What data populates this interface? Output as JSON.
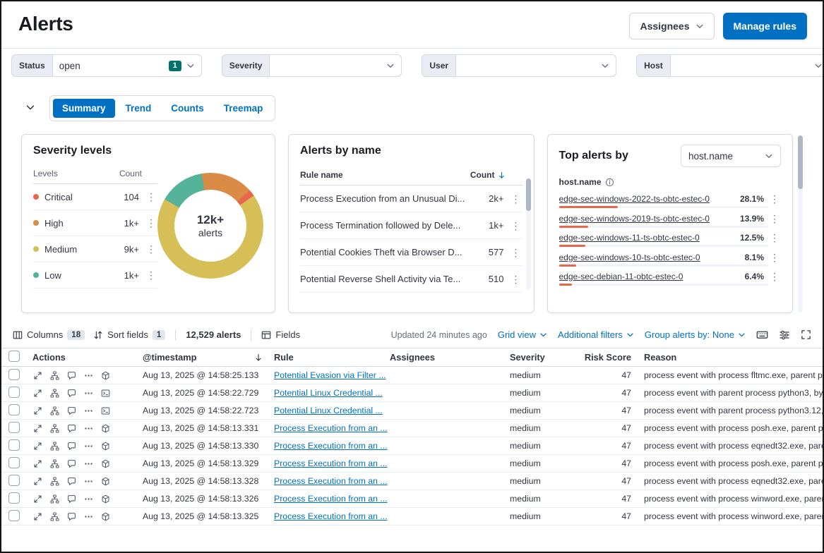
{
  "icons": {
    "more_vertical": "⋮",
    "more_horizontal": "⋯"
  },
  "header": {
    "title": "Alerts",
    "assignees_button": "Assignees",
    "manage_rules_button": "Manage rules"
  },
  "filter_bar": {
    "filters": [
      {
        "label": "Status",
        "value": "open",
        "badge": "1",
        "value_width": 212
      },
      {
        "label": "Severity",
        "value": "",
        "badge": "",
        "value_width": 188
      },
      {
        "label": "User",
        "value": "",
        "badge": "",
        "value_width": 228
      },
      {
        "label": "Host",
        "value": "",
        "badge": "",
        "value_width": 226
      }
    ]
  },
  "view_controls": {
    "tabs": [
      {
        "label": "Summary",
        "active": true
      },
      {
        "label": "Trend",
        "active": false
      },
      {
        "label": "Counts",
        "active": false
      },
      {
        "label": "Treemap",
        "active": false
      }
    ]
  },
  "severity_panel": {
    "title": "Severity levels",
    "columns": {
      "levels": "Levels",
      "count": "Count"
    },
    "rows": [
      {
        "level": "Critical",
        "count": "104",
        "color": "#e7664c"
      },
      {
        "level": "High",
        "count": "1k+",
        "color": "#da8b45"
      },
      {
        "level": "Medium",
        "count": "9k+",
        "color": "#d6bf57"
      },
      {
        "level": "Low",
        "count": "1k+",
        "color": "#54b399"
      }
    ],
    "donut": {
      "center_value": "12k+",
      "center_label": "alerts",
      "start_deg": 300,
      "segments": [
        {
          "label": "Low",
          "color": "#54b399",
          "share": 14
        },
        {
          "label": "High",
          "color": "#da8b45",
          "share": 16
        },
        {
          "label": "Critical",
          "color": "#e7664c",
          "share": 2
        },
        {
          "label": "Medium",
          "color": "#d6bf57",
          "share": 68
        }
      ]
    }
  },
  "alerts_by_name_panel": {
    "title": "Alerts by name",
    "columns": {
      "rule_name": "Rule name",
      "count": "Count"
    },
    "rows": [
      {
        "rule": "Process Execution from an Unusual Di...",
        "count": "2k+"
      },
      {
        "rule": "Process Termination followed by Dele...",
        "count": "1k+"
      },
      {
        "rule": "Potential Cookies Theft via Browser D...",
        "count": "577"
      },
      {
        "rule": "Potential Reverse Shell Activity via Te...",
        "count": "510"
      }
    ]
  },
  "top_alerts_panel": {
    "title": "Top alerts by",
    "selector_value": "host.name",
    "field_label": "host.name",
    "bar_color": "#e7664c",
    "rows": [
      {
        "name": "edge-sec-windows-2022-ts-obtc-estec-0",
        "pct_label": "28.1%",
        "pct": 28.1
      },
      {
        "name": "edge-sec-windows-2019-ts-obtc-estec-0",
        "pct_label": "13.9%",
        "pct": 13.9
      },
      {
        "name": "edge-sec-windows-11-ts-obtc-estec-0",
        "pct_label": "12.5%",
        "pct": 12.5
      },
      {
        "name": "edge-sec-windows-10-ts-obtc-estec-0",
        "pct_label": "8.1%",
        "pct": 8.1
      },
      {
        "name": "edge-sec-debian-11-obtc-estec-0",
        "pct_label": "6.4%",
        "pct": 6.4
      }
    ]
  },
  "grid_toolbar": {
    "columns_label": "Columns",
    "columns_count": "18",
    "sort_label": "Sort fields",
    "sort_count": "1",
    "alerts_count": "12,529 alerts",
    "fields_label": "Fields",
    "updated_text": "Updated 24 minutes ago",
    "grid_view_label": "Grid view",
    "additional_filters_label": "Additional filters",
    "group_by_label": "Group alerts by: None"
  },
  "alerts_table": {
    "columns": {
      "actions": "Actions",
      "timestamp": "@timestamp",
      "rule": "Rule",
      "assignees": "Assignees",
      "severity": "Severity",
      "risk_score": "Risk Score",
      "reason": "Reason"
    },
    "rows": [
      {
        "timestamp": "Aug 13, 2025 @ 14:58:25.133",
        "rule": "Potential Evasion via Filter ...",
        "assignees": "",
        "severity": "medium",
        "risk_score": "47",
        "reason": "process event with process fltmc.exe, parent pr",
        "viewer_icon": "cube"
      },
      {
        "timestamp": "Aug 13, 2025 @ 14:58:22.729",
        "rule": "Potential Linux Credential ...",
        "assignees": "",
        "severity": "medium",
        "risk_score": "47",
        "reason": "process event with parent process python3, by",
        "viewer_icon": "document"
      },
      {
        "timestamp": "Aug 13, 2025 @ 14:58:22.723",
        "rule": "Potential Linux Credential ...",
        "assignees": "",
        "severity": "medium",
        "risk_score": "47",
        "reason": "process event with parent process python3.12,",
        "viewer_icon": "document"
      },
      {
        "timestamp": "Aug 13, 2025 @ 14:58:13.331",
        "rule": "Process Execution from an ...",
        "assignees": "",
        "severity": "medium",
        "risk_score": "47",
        "reason": "process event with process posh.exe, parent pr",
        "viewer_icon": "cube"
      },
      {
        "timestamp": "Aug 13, 2025 @ 14:58:13.330",
        "rule": "Process Execution from an ...",
        "assignees": "",
        "severity": "medium",
        "risk_score": "47",
        "reason": "process event with process eqnedt32.exe, pare",
        "viewer_icon": "cube"
      },
      {
        "timestamp": "Aug 13, 2025 @ 14:58:13.329",
        "rule": "Process Execution from an ...",
        "assignees": "",
        "severity": "medium",
        "risk_score": "47",
        "reason": "process event with process posh.exe, parent pr",
        "viewer_icon": "cube"
      },
      {
        "timestamp": "Aug 13, 2025 @ 14:58:13.328",
        "rule": "Process Execution from an ...",
        "assignees": "",
        "severity": "medium",
        "risk_score": "47",
        "reason": "process event with process eqnedt32.exe, pare",
        "viewer_icon": "cube"
      },
      {
        "timestamp": "Aug 13, 2025 @ 14:58:13.326",
        "rule": "Process Execution from an ...",
        "assignees": "",
        "severity": "medium",
        "risk_score": "47",
        "reason": "process event with process winword.exe, paren",
        "viewer_icon": "cube"
      },
      {
        "timestamp": "Aug 13, 2025 @ 14:58:13.325",
        "rule": "Process Execution from an ...",
        "assignees": "",
        "severity": "medium",
        "risk_score": "47",
        "reason": "process event with process winword.exe, paren",
        "viewer_icon": "cube"
      }
    ]
  },
  "colors": {
    "primary": "#0071c2",
    "status_badge_green": "#00726b",
    "bar_red": "#e7664c"
  }
}
